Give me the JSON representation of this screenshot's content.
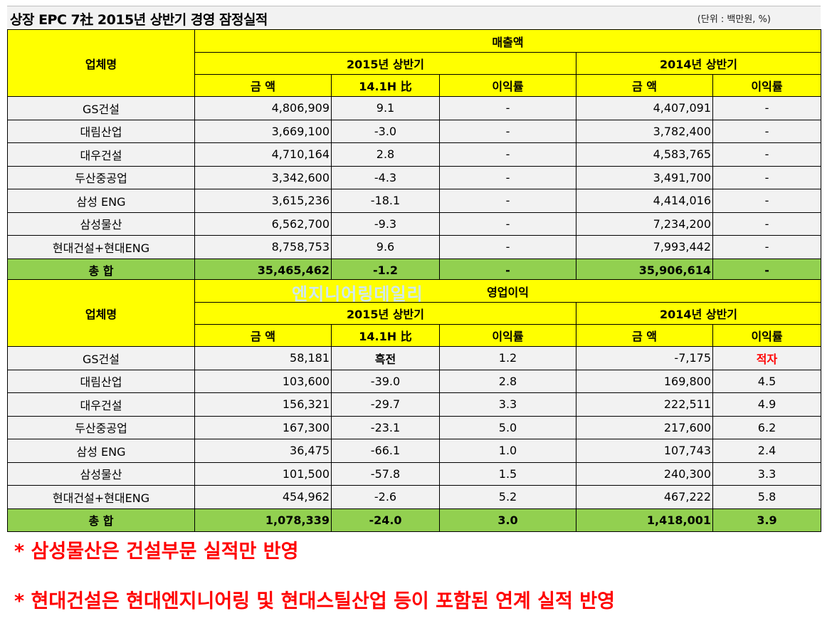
{
  "title": "상장 EPC 7社 2015년 상반기 경영 잠정실적",
  "unit": "(단위 : 백만원, %)",
  "headers": {
    "company": "업체명",
    "period_2015": "2015년 상반기",
    "period_2014": "2014년 상반기",
    "amount": "금 액",
    "ratio": "14.1H 比",
    "margin": "이익률"
  },
  "sales": {
    "section_title": "매출액",
    "rows": [
      {
        "name": "GS건설",
        "amt15": "4,806,909",
        "ratio": "9.1",
        "margin15": "-",
        "amt14": "4,407,091",
        "margin14": "-"
      },
      {
        "name": "대림산업",
        "amt15": "3,669,100",
        "ratio": "-3.0",
        "margin15": "-",
        "amt14": "3,782,400",
        "margin14": "-"
      },
      {
        "name": "대우건설",
        "amt15": "4,710,164",
        "ratio": "2.8",
        "margin15": "-",
        "amt14": "4,583,765",
        "margin14": "-"
      },
      {
        "name": "두산중공업",
        "amt15": "3,342,600",
        "ratio": "-4.3",
        "margin15": "-",
        "amt14": "3,491,700",
        "margin14": "-"
      },
      {
        "name": "삼성 ENG",
        "amt15": "3,615,236",
        "ratio": "-18.1",
        "margin15": "-",
        "amt14": "4,414,016",
        "margin14": "-"
      },
      {
        "name": "삼성물산",
        "amt15": "6,562,700",
        "ratio": "-9.3",
        "margin15": "-",
        "amt14": "7,234,200",
        "margin14": "-"
      },
      {
        "name": "현대건설+현대ENG",
        "amt15": "8,758,753",
        "ratio": "9.6",
        "margin15": "-",
        "amt14": "7,993,442",
        "margin14": "-"
      }
    ],
    "total": {
      "name": "총 합",
      "amt15": "35,465,462",
      "ratio": "-1.2",
      "margin15": "-",
      "amt14": "35,906,614",
      "margin14": "-"
    }
  },
  "watermark": "엔지니어링데일리",
  "op_income": {
    "section_title": "영업이익",
    "rows": [
      {
        "name": "GS건설",
        "amt15": "58,181",
        "ratio": "흑전",
        "margin15": "1.2",
        "amt14": "-7,175",
        "margin14": "적자"
      },
      {
        "name": "대림산업",
        "amt15": "103,600",
        "ratio": "-39.0",
        "margin15": "2.8",
        "amt14": "169,800",
        "margin14": "4.5"
      },
      {
        "name": "대우건설",
        "amt15": "156,321",
        "ratio": "-29.7",
        "margin15": "3.3",
        "amt14": "222,511",
        "margin14": "4.9"
      },
      {
        "name": "두산중공업",
        "amt15": "167,300",
        "ratio": "-23.1",
        "margin15": "5.0",
        "amt14": "217,600",
        "margin14": "6.2"
      },
      {
        "name": "삼성 ENG",
        "amt15": "36,475",
        "ratio": "-66.1",
        "margin15": "1.0",
        "amt14": "107,743",
        "margin14": "2.4"
      },
      {
        "name": "삼성물산",
        "amt15": "101,500",
        "ratio": "-57.8",
        "margin15": "1.5",
        "amt14": "240,300",
        "margin14": "3.3"
      },
      {
        "name": "현대건설+현대ENG",
        "amt15": "454,962",
        "ratio": "-2.6",
        "margin15": "5.2",
        "amt14": "467,222",
        "margin14": "5.8"
      }
    ],
    "total": {
      "name": "총 합",
      "amt15": "1,078,339",
      "ratio": "-24.0",
      "margin15": "3.0",
      "amt14": "1,418,001",
      "margin14": "3.9"
    }
  },
  "notes": [
    "* 삼성물산은 건설부문 실적만 반영",
    "* 현대건설은 현대엔지니어링 및 현대스틸산업 등이 포함된 연계 실적 반영"
  ],
  "colors": {
    "header": "#ffff00",
    "total": "#92d050",
    "row": "#f2f2f2",
    "note": "#ff0000"
  }
}
